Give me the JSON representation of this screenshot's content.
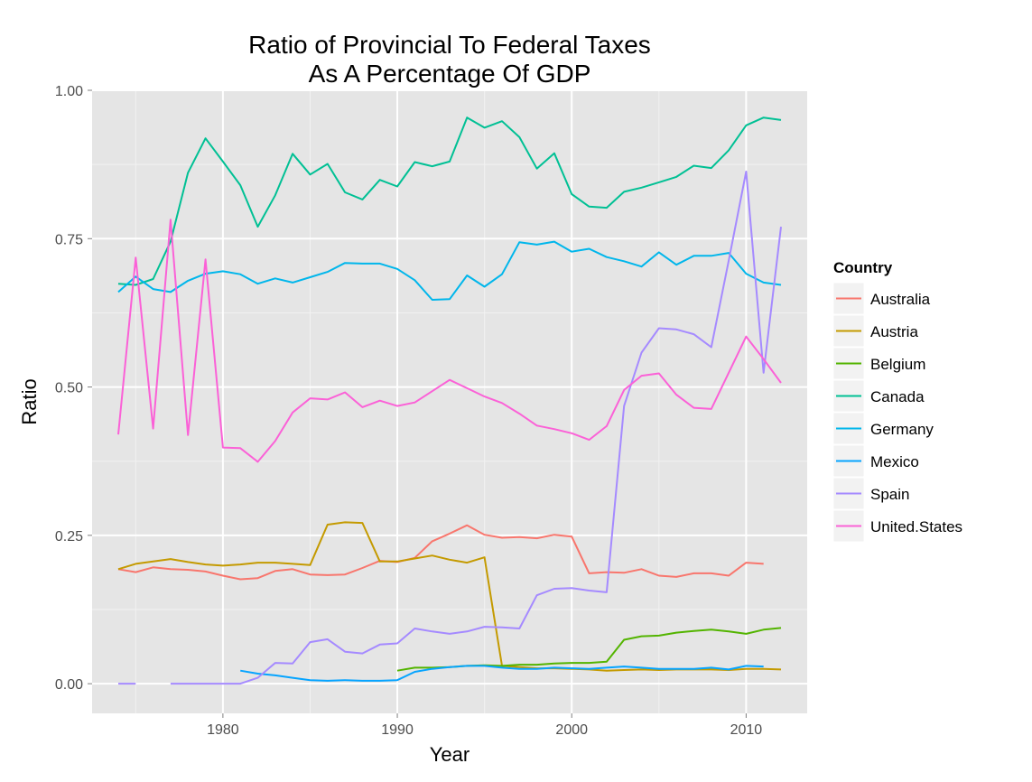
{
  "chart_data": {
    "type": "line",
    "title": [
      "Ratio of Provincial To Federal Taxes",
      "As A Percentage Of GDP"
    ],
    "xlabel": "Year",
    "ylabel": "Ratio",
    "xlim": [
      1972.5,
      2013.5
    ],
    "ylim": [
      -0.05,
      1.0
    ],
    "x_ticks": [
      1980,
      1990,
      2000,
      2010
    ],
    "y_ticks": [
      0.0,
      0.25,
      0.5,
      0.75,
      1.0
    ],
    "y_tick_labels": [
      "0.00",
      "0.25",
      "0.50",
      "0.75",
      "1.00"
    ],
    "grid": true,
    "legend": {
      "title": "Country",
      "placement": "right"
    },
    "series": [
      {
        "name": "Australia",
        "color": "#F8766D",
        "points": [
          [
            1974,
            0.193
          ],
          [
            1975,
            0.188
          ],
          [
            1976,
            0.196
          ],
          [
            1977,
            0.193
          ],
          [
            1978,
            0.192
          ],
          [
            1979,
            0.189
          ],
          [
            1980,
            0.182
          ],
          [
            1981,
            0.176
          ],
          [
            1982,
            0.178
          ],
          [
            1983,
            0.19
          ],
          [
            1984,
            0.193
          ],
          [
            1985,
            0.184
          ],
          [
            1986,
            0.183
          ],
          [
            1987,
            0.184
          ],
          [
            1988,
            0.195
          ],
          [
            1989,
            0.207
          ],
          [
            1990,
            0.205
          ],
          [
            1991,
            0.212
          ],
          [
            1992,
            0.24
          ],
          [
            1993,
            0.253
          ],
          [
            1994,
            0.267
          ],
          [
            1995,
            0.251
          ],
          [
            1996,
            0.246
          ],
          [
            1997,
            0.247
          ],
          [
            1998,
            0.245
          ],
          [
            1999,
            0.251
          ],
          [
            2000,
            0.248
          ],
          [
            2001,
            0.186
          ],
          [
            2002,
            0.188
          ],
          [
            2003,
            0.187
          ],
          [
            2004,
            0.193
          ],
          [
            2005,
            0.182
          ],
          [
            2006,
            0.18
          ],
          [
            2007,
            0.186
          ],
          [
            2008,
            0.186
          ],
          [
            2009,
            0.182
          ],
          [
            2010,
            0.204
          ],
          [
            2011,
            0.202
          ]
        ]
      },
      {
        "name": "Austria",
        "color": "#C49A00",
        "points": [
          [
            1974,
            0.193
          ],
          [
            1975,
            0.202
          ],
          [
            1976,
            0.206
          ],
          [
            1977,
            0.21
          ],
          [
            1978,
            0.205
          ],
          [
            1979,
            0.201
          ],
          [
            1980,
            0.199
          ],
          [
            1981,
            0.201
          ],
          [
            1982,
            0.204
          ],
          [
            1983,
            0.204
          ],
          [
            1984,
            0.202
          ],
          [
            1985,
            0.2
          ],
          [
            1986,
            0.268
          ],
          [
            1987,
            0.272
          ],
          [
            1988,
            0.271
          ],
          [
            1989,
            0.206
          ],
          [
            1990,
            0.206
          ],
          [
            1991,
            0.211
          ],
          [
            1992,
            0.216
          ],
          [
            1993,
            0.209
          ],
          [
            1994,
            0.204
          ],
          [
            1995,
            0.213
          ],
          [
            1996,
            0.03
          ],
          [
            1997,
            0.028
          ],
          [
            1998,
            0.026
          ],
          [
            1999,
            0.026
          ],
          [
            2000,
            0.025
          ],
          [
            2001,
            0.024
          ],
          [
            2002,
            0.022
          ],
          [
            2003,
            0.023
          ],
          [
            2004,
            0.024
          ],
          [
            2005,
            0.023
          ],
          [
            2006,
            0.024
          ],
          [
            2007,
            0.024
          ],
          [
            2008,
            0.024
          ],
          [
            2009,
            0.023
          ],
          [
            2010,
            0.025
          ],
          [
            2011,
            0.025
          ],
          [
            2012,
            0.024
          ]
        ]
      },
      {
        "name": "Belgium",
        "color": "#53B400",
        "points": [
          [
            1990,
            0.022
          ],
          [
            1991,
            0.027
          ],
          [
            1992,
            0.027
          ],
          [
            1993,
            0.028
          ],
          [
            1994,
            0.03
          ],
          [
            1995,
            0.031
          ],
          [
            1996,
            0.03
          ],
          [
            1997,
            0.032
          ],
          [
            1998,
            0.032
          ],
          [
            1999,
            0.034
          ],
          [
            2000,
            0.035
          ],
          [
            2001,
            0.035
          ],
          [
            2002,
            0.037
          ],
          [
            2003,
            0.074
          ],
          [
            2004,
            0.08
          ],
          [
            2005,
            0.081
          ],
          [
            2006,
            0.086
          ],
          [
            2007,
            0.089
          ],
          [
            2008,
            0.091
          ],
          [
            2009,
            0.088
          ],
          [
            2010,
            0.084
          ],
          [
            2011,
            0.091
          ],
          [
            2012,
            0.094
          ]
        ]
      },
      {
        "name": "Canada",
        "color": "#00C094",
        "points": [
          [
            1974,
            0.674
          ],
          [
            1975,
            0.672
          ],
          [
            1976,
            0.682
          ],
          [
            1977,
            0.745
          ],
          [
            1978,
            0.861
          ],
          [
            1979,
            0.919
          ],
          [
            1980,
            0.88
          ],
          [
            1981,
            0.84
          ],
          [
            1982,
            0.77
          ],
          [
            1983,
            0.823
          ],
          [
            1984,
            0.893
          ],
          [
            1985,
            0.858
          ],
          [
            1986,
            0.876
          ],
          [
            1987,
            0.828
          ],
          [
            1988,
            0.816
          ],
          [
            1989,
            0.849
          ],
          [
            1990,
            0.838
          ],
          [
            1991,
            0.879
          ],
          [
            1992,
            0.872
          ],
          [
            1993,
            0.88
          ],
          [
            1994,
            0.954
          ],
          [
            1995,
            0.937
          ],
          [
            1996,
            0.948
          ],
          [
            1997,
            0.921
          ],
          [
            1998,
            0.868
          ],
          [
            1999,
            0.894
          ],
          [
            2000,
            0.825
          ],
          [
            2001,
            0.804
          ],
          [
            2002,
            0.802
          ],
          [
            2003,
            0.829
          ],
          [
            2004,
            0.836
          ],
          [
            2005,
            0.845
          ],
          [
            2006,
            0.854
          ],
          [
            2007,
            0.873
          ],
          [
            2008,
            0.869
          ],
          [
            2009,
            0.899
          ],
          [
            2010,
            0.941
          ],
          [
            2011,
            0.954
          ],
          [
            2012,
            0.95
          ]
        ]
      },
      {
        "name": "Germany",
        "color": "#00B6EB",
        "points": [
          [
            1974,
            0.66
          ],
          [
            1975,
            0.686
          ],
          [
            1976,
            0.665
          ],
          [
            1977,
            0.66
          ],
          [
            1978,
            0.679
          ],
          [
            1979,
            0.691
          ],
          [
            1980,
            0.695
          ],
          [
            1981,
            0.69
          ],
          [
            1982,
            0.674
          ],
          [
            1983,
            0.683
          ],
          [
            1984,
            0.676
          ],
          [
            1985,
            0.685
          ],
          [
            1986,
            0.694
          ],
          [
            1987,
            0.709
          ],
          [
            1988,
            0.708
          ],
          [
            1989,
            0.708
          ],
          [
            1990,
            0.699
          ],
          [
            1991,
            0.68
          ],
          [
            1992,
            0.647
          ],
          [
            1993,
            0.648
          ],
          [
            1994,
            0.688
          ],
          [
            1995,
            0.669
          ],
          [
            1996,
            0.69
          ],
          [
            1997,
            0.744
          ],
          [
            1998,
            0.74
          ],
          [
            1999,
            0.745
          ],
          [
            2000,
            0.728
          ],
          [
            2001,
            0.733
          ],
          [
            2002,
            0.719
          ],
          [
            2003,
            0.712
          ],
          [
            2004,
            0.703
          ],
          [
            2005,
            0.727
          ],
          [
            2006,
            0.706
          ],
          [
            2007,
            0.721
          ],
          [
            2008,
            0.721
          ],
          [
            2009,
            0.726
          ],
          [
            2010,
            0.691
          ],
          [
            2011,
            0.676
          ],
          [
            2012,
            0.672
          ]
        ]
      },
      {
        "name": "Mexico",
        "color": "#06A4FF",
        "points": [
          [
            1981,
            0.022
          ],
          [
            1982,
            0.017
          ],
          [
            1983,
            0.014
          ],
          [
            1984,
            0.01
          ],
          [
            1985,
            0.006
          ],
          [
            1986,
            0.005
          ],
          [
            1987,
            0.006
          ],
          [
            1988,
            0.005
          ],
          [
            1989,
            0.005
          ],
          [
            1990,
            0.006
          ],
          [
            1991,
            0.02
          ],
          [
            1992,
            0.025
          ],
          [
            1993,
            0.028
          ],
          [
            1994,
            0.03
          ],
          [
            1995,
            0.03
          ],
          [
            1996,
            0.027
          ],
          [
            1997,
            0.025
          ],
          [
            1998,
            0.025
          ],
          [
            1999,
            0.027
          ],
          [
            2000,
            0.026
          ],
          [
            2001,
            0.025
          ],
          [
            2002,
            0.027
          ],
          [
            2003,
            0.029
          ],
          [
            2004,
            0.027
          ],
          [
            2005,
            0.025
          ],
          [
            2006,
            0.025
          ],
          [
            2007,
            0.025
          ],
          [
            2008,
            0.027
          ],
          [
            2009,
            0.024
          ],
          [
            2010,
            0.03
          ],
          [
            2011,
            0.029
          ]
        ]
      },
      {
        "name": "Spain",
        "color": "#A58AFF",
        "segments": [
          [
            [
              1974,
              0.0
            ],
            [
              1975,
              0.0
            ]
          ],
          [
            [
              1977,
              0.0
            ],
            [
              1978,
              0.0
            ],
            [
              1979,
              0.0
            ],
            [
              1980,
              0.0
            ],
            [
              1981,
              0.0
            ],
            [
              1982,
              0.01
            ],
            [
              1983,
              0.035
            ],
            [
              1984,
              0.034
            ],
            [
              1985,
              0.07
            ],
            [
              1986,
              0.075
            ],
            [
              1987,
              0.054
            ],
            [
              1988,
              0.051
            ],
            [
              1989,
              0.066
            ],
            [
              1990,
              0.068
            ],
            [
              1991,
              0.093
            ],
            [
              1992,
              0.088
            ],
            [
              1993,
              0.084
            ],
            [
              1994,
              0.088
            ],
            [
              1995,
              0.096
            ],
            [
              1996,
              0.095
            ],
            [
              1997,
              0.093
            ],
            [
              1998,
              0.149
            ],
            [
              1999,
              0.16
            ],
            [
              2000,
              0.161
            ],
            [
              2001,
              0.157
            ],
            [
              2002,
              0.154
            ],
            [
              2003,
              0.468
            ],
            [
              2004,
              0.558
            ],
            [
              2005,
              0.599
            ],
            [
              2006,
              0.597
            ],
            [
              2007,
              0.589
            ],
            [
              2008,
              0.567
            ],
            [
              2009,
              0.713
            ],
            [
              2010,
              0.863
            ],
            [
              2011,
              0.524
            ],
            [
              2012,
              0.77
            ]
          ]
        ]
      },
      {
        "name": "United.States",
        "color": "#FB61D7",
        "points": [
          [
            1974,
            0.42
          ],
          [
            1975,
            0.718
          ],
          [
            1976,
            0.43
          ],
          [
            1977,
            0.782
          ],
          [
            1978,
            0.419
          ],
          [
            1979,
            0.715
          ],
          [
            1980,
            0.398
          ],
          [
            1981,
            0.397
          ],
          [
            1982,
            0.374
          ],
          [
            1983,
            0.409
          ],
          [
            1984,
            0.457
          ],
          [
            1985,
            0.481
          ],
          [
            1986,
            0.479
          ],
          [
            1987,
            0.491
          ],
          [
            1988,
            0.466
          ],
          [
            1989,
            0.477
          ],
          [
            1990,
            0.468
          ],
          [
            1991,
            0.474
          ],
          [
            1992,
            0.493
          ],
          [
            1993,
            0.512
          ],
          [
            1994,
            0.498
          ],
          [
            1995,
            0.484
          ],
          [
            1996,
            0.473
          ],
          [
            1997,
            0.455
          ],
          [
            1998,
            0.435
          ],
          [
            1999,
            0.429
          ],
          [
            2000,
            0.422
          ],
          [
            2001,
            0.411
          ],
          [
            2002,
            0.434
          ],
          [
            2003,
            0.495
          ],
          [
            2004,
            0.519
          ],
          [
            2005,
            0.523
          ],
          [
            2006,
            0.487
          ],
          [
            2007,
            0.465
          ],
          [
            2008,
            0.463
          ],
          [
            2009,
            0.524
          ],
          [
            2010,
            0.585
          ],
          [
            2011,
            0.547
          ],
          [
            2012,
            0.507
          ]
        ]
      }
    ]
  }
}
